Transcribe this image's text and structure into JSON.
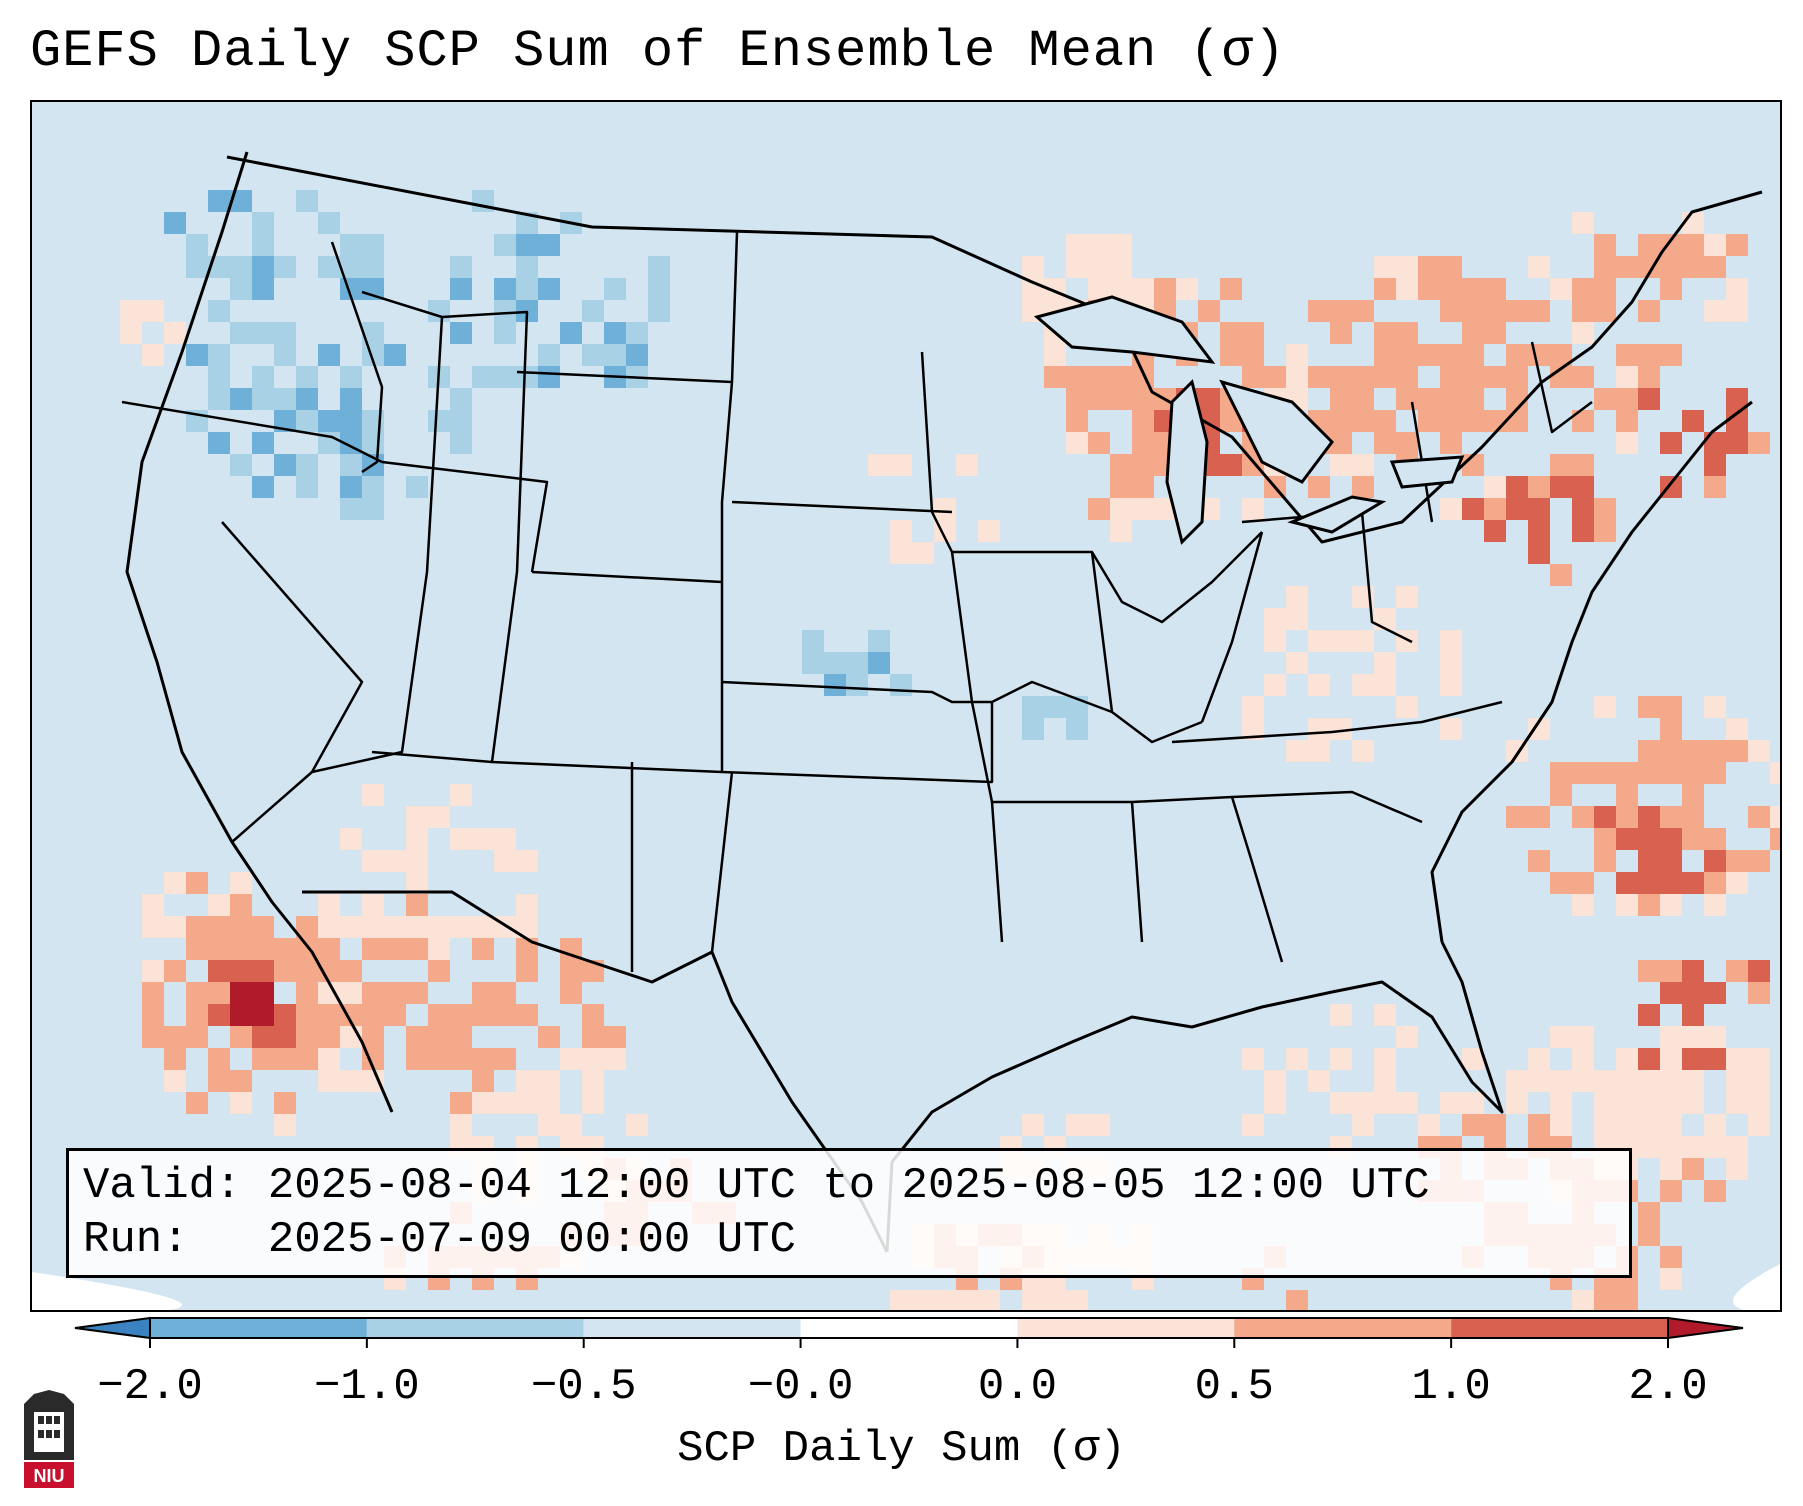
{
  "title": "GEFS Daily SCP Sum of Ensemble Mean (σ)",
  "info": {
    "valid_label": "Valid:",
    "valid_value": "2025-08-04 12:00 UTC to 2025-08-05 12:00 UTC",
    "run_label": "Run:",
    "run_value": "2025-07-09 00:00 UTC"
  },
  "colorbar": {
    "label": "SCP Daily Sum (σ)",
    "ticks": [
      "−2.0",
      "−1.0",
      "−0.5",
      "−0.0",
      "0.0",
      "0.5",
      "1.0",
      "2.0"
    ],
    "colors": [
      "#3b82c0",
      "#6fb0d8",
      "#a9d1e6",
      "#d3e5f0",
      "#fbe3d7",
      "#f4a98a",
      "#d9614f",
      "#b01a2a"
    ],
    "extend": "both"
  },
  "map": {
    "region": "Contiguous United States",
    "background_color": "#d3e5f0",
    "ocean_color": "#d3e5f0"
  },
  "logo": {
    "text": "NIU"
  }
}
